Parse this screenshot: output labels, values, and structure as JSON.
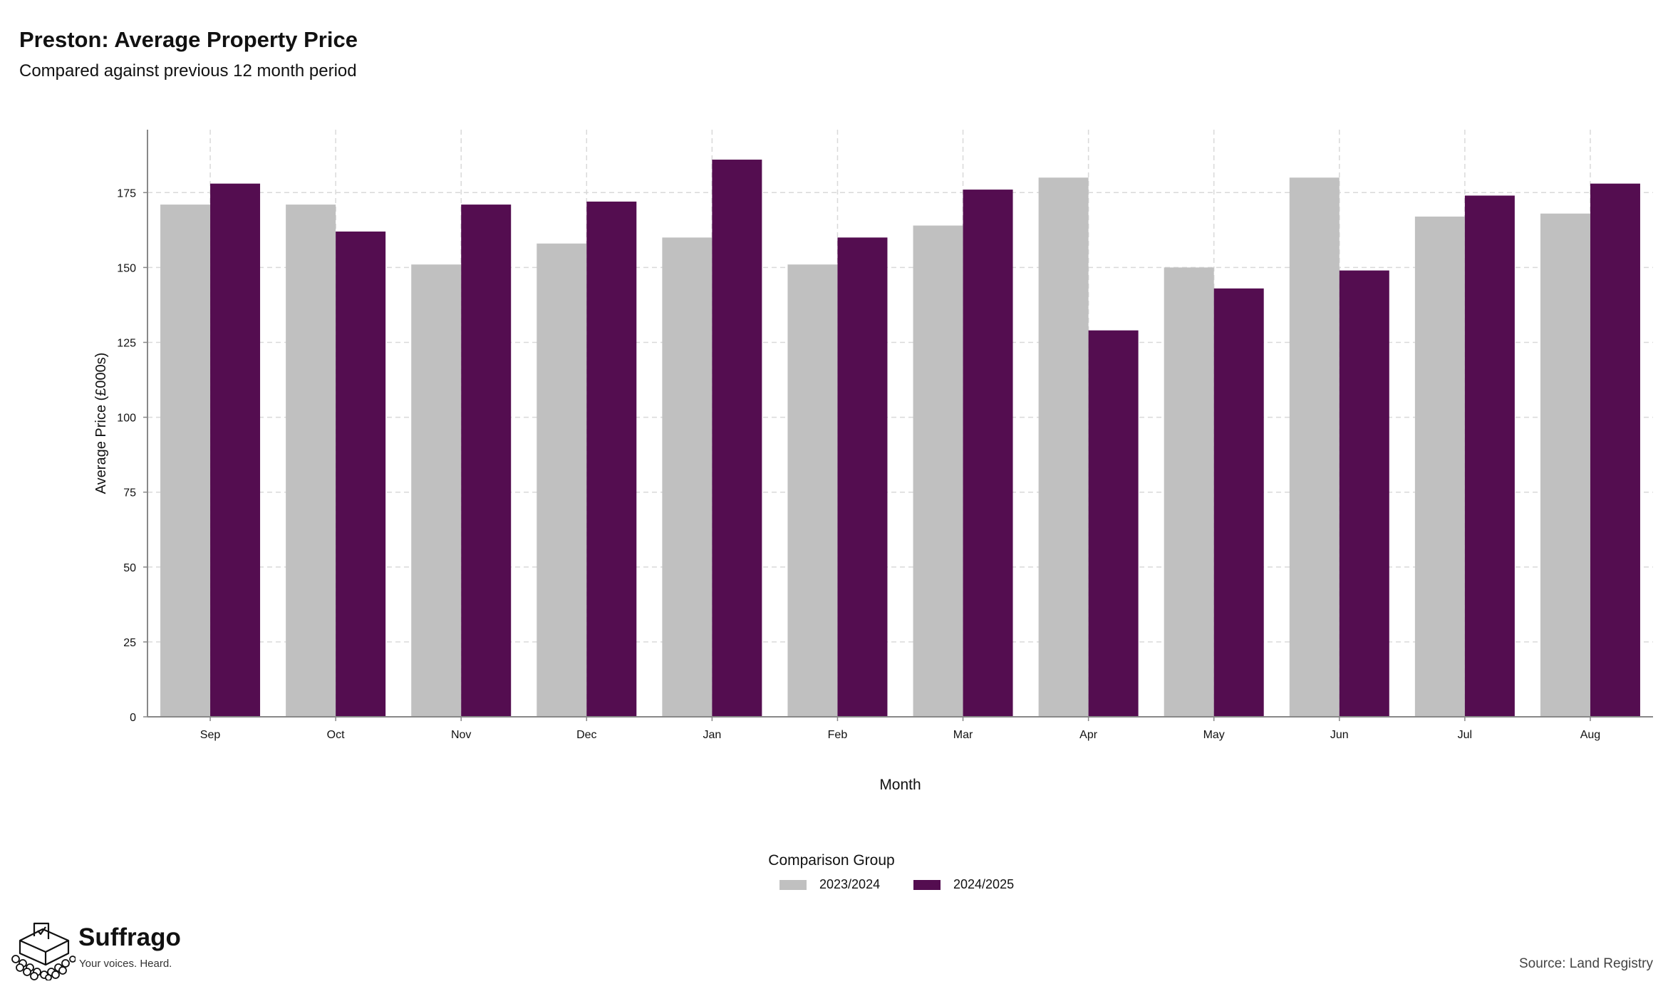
{
  "header": {
    "title": "Preston: Average Property Price",
    "subtitle": "Compared against previous 12 month period"
  },
  "chart_data": {
    "type": "bar",
    "categories": [
      "Sep",
      "Oct",
      "Nov",
      "Dec",
      "Jan",
      "Feb",
      "Mar",
      "Apr",
      "May",
      "Jun",
      "Jul",
      "Aug"
    ],
    "series": [
      {
        "name": "2023/2024",
        "color": "#c0c0c0",
        "values": [
          171,
          171,
          151,
          158,
          160,
          151,
          164,
          180,
          150,
          180,
          167,
          168
        ]
      },
      {
        "name": "2024/2025",
        "color": "#540d50",
        "values": [
          178,
          162,
          171,
          172,
          186,
          160,
          176,
          129,
          143,
          149,
          174,
          178
        ]
      }
    ],
    "xlabel": "Month",
    "ylabel": "Average Price (£000s)",
    "ylim": [
      0,
      196
    ],
    "yticks": [
      0,
      25,
      50,
      75,
      100,
      125,
      150,
      175
    ],
    "grid": true,
    "legend_title": "Comparison Group",
    "legend_position": "bottom"
  },
  "footer": {
    "brand_name": "Suffrago",
    "brand_tagline": "Your voices. Heard.",
    "source": "Source: Land Registry"
  }
}
